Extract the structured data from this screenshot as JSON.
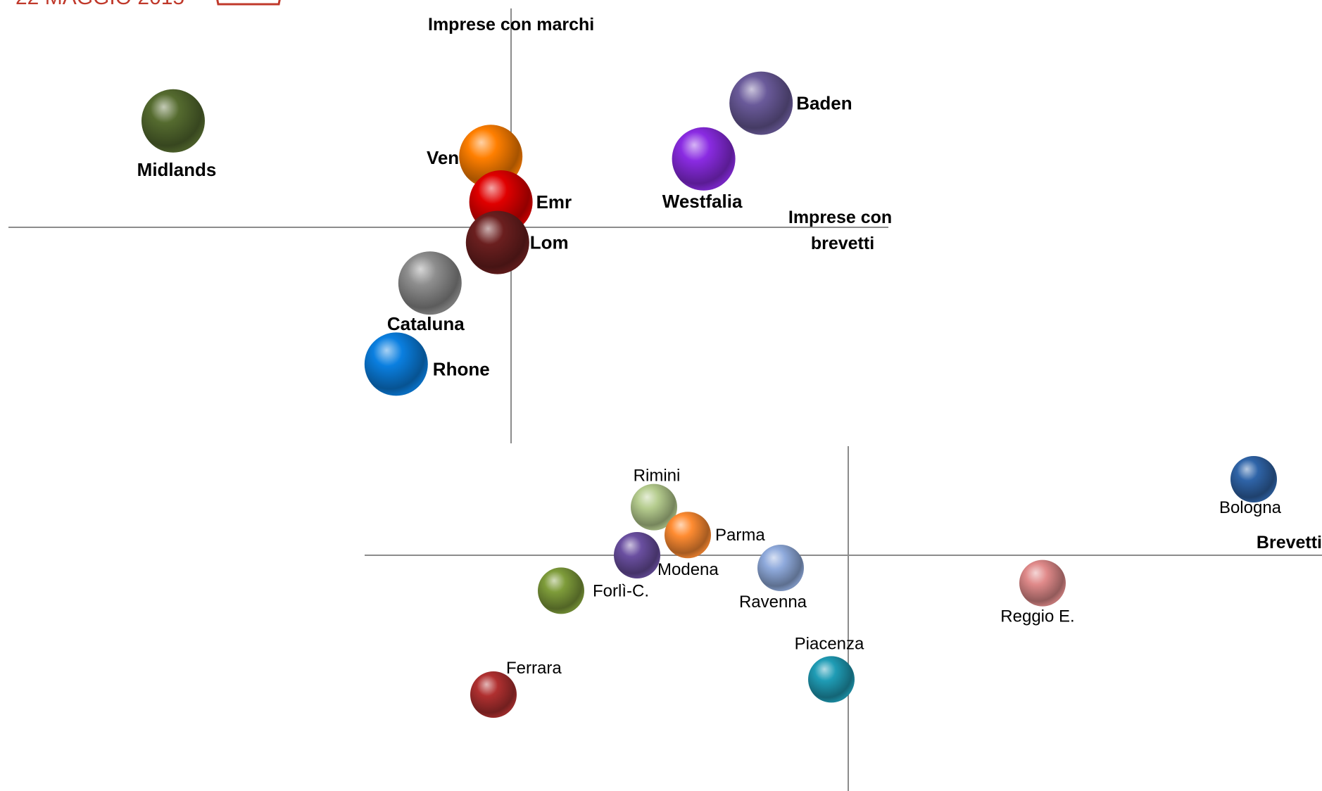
{
  "header": {
    "date_text": "22 MAGGIO 2015",
    "logo_color": "#c0392b"
  },
  "chart_data": [
    {
      "type": "scatter",
      "title": "",
      "xlabel": "Imprese con brevetti",
      "ylabel": "Imprese con marchi",
      "grid": false,
      "points": [
        {
          "label": "Midlands",
          "x": -10.0,
          "y": 4.2,
          "color": "#556b2f"
        },
        {
          "label": "Ven",
          "x": -0.6,
          "y": 2.8,
          "color": "#ff7f00"
        },
        {
          "label": "Emr",
          "x": -0.3,
          "y": 1.0,
          "color": "#e00000"
        },
        {
          "label": "Lom",
          "x": -0.4,
          "y": -0.6,
          "color": "#6b1f1f"
        },
        {
          "label": "Baden",
          "x": 7.4,
          "y": 4.9,
          "color": "#6a5a9a"
        },
        {
          "label": "Westfalia",
          "x": 5.7,
          "y": 2.7,
          "color": "#8a2be2"
        },
        {
          "label": "Cataluna",
          "x": -2.4,
          "y": -2.2,
          "color": "#8e8e8e"
        },
        {
          "label": "Rhone",
          "x": -3.4,
          "y": -5.4,
          "color": "#0a7fe0"
        }
      ]
    },
    {
      "type": "scatter",
      "title": "",
      "xlabel": "Brevetti",
      "ylabel": "",
      "grid": false,
      "points": [
        {
          "label": "Rimini",
          "x": -2.3,
          "y": 1.9,
          "color": "#b5cc8e"
        },
        {
          "label": "Parma",
          "x": -1.9,
          "y": 0.8,
          "color": "#ff8c32"
        },
        {
          "label": "Modena",
          "x": -2.5,
          "y": 0.0,
          "color": "#6a4fa0"
        },
        {
          "label": "Forlì-C.",
          "x": -3.4,
          "y": -1.4,
          "color": "#7e9c3a"
        },
        {
          "label": "Ravenna",
          "x": -0.8,
          "y": -0.5,
          "color": "#8faadc"
        },
        {
          "label": "Reggio E.",
          "x": 2.3,
          "y": -1.1,
          "color": "#e08a8a"
        },
        {
          "label": "Bologna",
          "x": 4.8,
          "y": 3.0,
          "color": "#2f64a8"
        },
        {
          "label": "Ferrara",
          "x": -4.2,
          "y": -5.5,
          "color": "#b03030"
        },
        {
          "label": "Piacenza",
          "x": -0.2,
          "y": -4.9,
          "color": "#1f9cb5"
        }
      ]
    }
  ]
}
